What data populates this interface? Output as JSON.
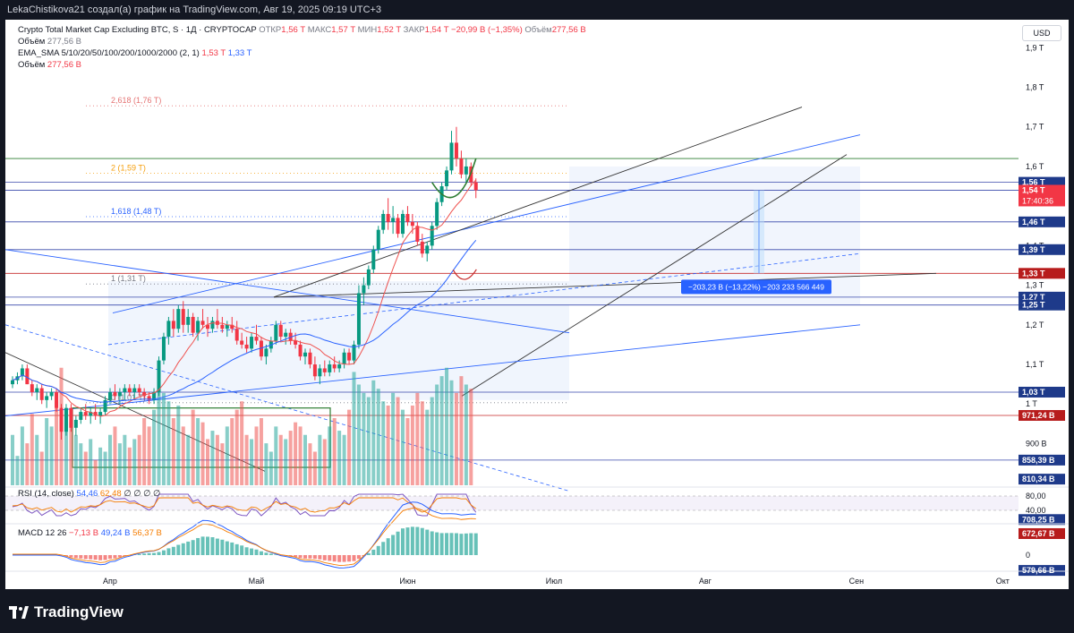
{
  "header": {
    "author_text": "LekaChistikova21 создал(а) график на TradingView.com, Авг 19, 2025 09:19 UTC+3"
  },
  "legend": {
    "symbol": "Crypto Total Market Cap Excluding BTC, S · 1Д · CRYPTOCAP",
    "open_label": "ОТКР",
    "open": "1,56 T",
    "high_label": "МАКС",
    "high": "1,57 T",
    "low_label": "МИН",
    "low": "1,52 T",
    "close_label": "ЗАКР",
    "close": "1,54 T",
    "change": "−20,99 B (−1,35%)",
    "volume_label": "Объём",
    "volume": "277,56 B",
    "vol2_label": "Объём",
    "vol2": "277,56 B",
    "ema_label": "EMA_SMA 5/10/20/50/100/200/1000/2000 (2, 1)",
    "ema1": "1,53 T",
    "ema2": "1,33 T",
    "vol3_label": "Объём",
    "vol3": "277,56 B",
    "rsi_label": "RSI (14, close)",
    "rsi1": "54,46",
    "rsi2": "62,48",
    "rsi_zeros": "∅ ∅ ∅ ∅",
    "macd_label": "MACD 12 26",
    "macd1": "−7,13 B",
    "macd2": "49,24 B",
    "macd3": "56,37 B"
  },
  "currency_button": "USD",
  "price_axis": {
    "ticks": [
      {
        "label": "1,9 T",
        "value": 1.9
      },
      {
        "label": "1,8 T",
        "value": 1.8
      },
      {
        "label": "1,7 T",
        "value": 1.7
      },
      {
        "label": "1,6 T",
        "value": 1.6
      },
      {
        "label": "1,4 T",
        "value": 1.4
      },
      {
        "label": "1,3 T",
        "value": 1.3
      },
      {
        "label": "1,2 T",
        "value": 1.2
      },
      {
        "label": "1,1 T",
        "value": 1.1
      },
      {
        "label": "1 T",
        "value": 1.0
      },
      {
        "label": "900 B",
        "value": 0.9
      }
    ],
    "badges": [
      {
        "label": "1,56 T",
        "value": 1.56,
        "color": "#1e3a8a",
        "sub": ""
      },
      {
        "label": "1,54 T",
        "value": 1.54,
        "color": "#f23645",
        "sub": "17:40:36"
      },
      {
        "label": "1,46 T",
        "value": 1.46,
        "color": "#1e3a8a",
        "sub": ""
      },
      {
        "label": "1,39 T",
        "value": 1.39,
        "color": "#1e3a8a",
        "sub": ""
      },
      {
        "label": "1,33 T",
        "value": 1.33,
        "color": "#b71c1c",
        "sub": ""
      },
      {
        "label": "1,27 T",
        "value": 1.27,
        "color": "#1e3a8a",
        "sub": ""
      },
      {
        "label": "1,25 T",
        "value": 1.25,
        "color": "#1e3a8a",
        "sub": ""
      },
      {
        "label": "1,03 T",
        "value": 1.03,
        "color": "#1e3a8a",
        "sub": ""
      },
      {
        "label": "971,24 B",
        "value": 0.9712,
        "color": "#b71c1c",
        "sub": ""
      },
      {
        "label": "858,39 B",
        "value": 0.8584,
        "color": "#1e3a8a",
        "sub": ""
      },
      {
        "label": "810,34 B",
        "value": 0.8103,
        "color": "#1e3a8a",
        "sub": ""
      },
      {
        "label": "708,25 B",
        "value": 0.7082,
        "color": "#1e3a8a",
        "sub": ""
      },
      {
        "label": "672,67 B",
        "value": 0.6727,
        "color": "#b71c1c",
        "sub": ""
      },
      {
        "label": "579,66 B",
        "value": 0.5797,
        "color": "#1e3a8a",
        "sub": ""
      }
    ]
  },
  "rsi_axis": [
    {
      "label": "80,00",
      "value": 80
    },
    {
      "label": "40,00",
      "value": 40
    }
  ],
  "macd_axis": [
    {
      "label": "0",
      "value": 0
    }
  ],
  "time_axis": [
    {
      "label": "Апр",
      "day": 20
    },
    {
      "label": "Май",
      "day": 50
    },
    {
      "label": "Июн",
      "day": 81
    },
    {
      "label": "Июл",
      "day": 111
    },
    {
      "label": "Авг",
      "day": 142
    },
    {
      "label": "Сен",
      "day": 173
    },
    {
      "label": "Окт",
      "day": 203
    }
  ],
  "fibonacci": [
    {
      "label": "2,618 (1,76 T)",
      "value": 1.76,
      "color": "#e57373"
    },
    {
      "label": "2 (1,59 T)",
      "value": 1.59,
      "color": "#f59e0b"
    },
    {
      "label": "1,618 (1,48 T)",
      "value": 1.48,
      "color": "#2962ff"
    },
    {
      "label": "1 (1,31 T)",
      "value": 1.31,
      "color": "#787b86"
    },
    {
      "label": "0 (1,01 T)",
      "value": 1.01,
      "color": "#787b86"
    }
  ],
  "measurement": {
    "label": "−203,23 B (−13,22%) −203 233 566 449"
  },
  "chart_data": {
    "type": "candlestick",
    "title": "Crypto Total Market Cap Excluding BTC, 1D",
    "ylabel": "USD",
    "ylim": [
      0.84,
      1.93
    ],
    "start_day": 0,
    "end_day": 140,
    "candles": [
      [
        1.05,
        1.07,
        1.04,
        1.06
      ],
      [
        1.06,
        1.08,
        1.05,
        1.07
      ],
      [
        1.07,
        1.1,
        1.06,
        1.09
      ],
      [
        1.09,
        1.1,
        1.05,
        1.05
      ],
      [
        1.05,
        1.06,
        1.02,
        1.03
      ],
      [
        1.03,
        1.05,
        1.01,
        1.04
      ],
      [
        1.04,
        1.05,
        1.0,
        1.01
      ],
      [
        1.01,
        1.03,
        0.99,
        1.02
      ],
      [
        1.02,
        1.04,
        1.01,
        1.03
      ],
      [
        1.03,
        1.04,
        0.98,
        0.99
      ],
      [
        0.99,
        1.0,
        0.91,
        0.93
      ],
      [
        0.93,
        1.0,
        0.92,
        0.99
      ],
      [
        0.99,
        1.0,
        0.93,
        0.94
      ],
      [
        0.94,
        0.97,
        0.92,
        0.96
      ],
      [
        0.96,
        0.99,
        0.95,
        0.98
      ],
      [
        0.98,
        1.0,
        0.96,
        0.97
      ],
      [
        0.97,
        0.99,
        0.95,
        0.98
      ],
      [
        0.98,
        1.0,
        0.96,
        0.97
      ],
      [
        0.97,
        0.99,
        0.95,
        0.98
      ],
      [
        0.98,
        1.02,
        0.97,
        1.01
      ],
      [
        1.01,
        1.04,
        1.0,
        1.03
      ],
      [
        1.03,
        1.05,
        1.01,
        1.02
      ],
      [
        1.02,
        1.04,
        1.0,
        1.03
      ],
      [
        1.03,
        1.05,
        1.01,
        1.04
      ],
      [
        1.04,
        1.05,
        1.02,
        1.03
      ],
      [
        1.03,
        1.05,
        1.01,
        1.04
      ],
      [
        1.04,
        1.05,
        1.02,
        1.03
      ],
      [
        1.03,
        1.04,
        1.01,
        1.02
      ],
      [
        1.02,
        1.03,
        1.0,
        1.01
      ],
      [
        1.01,
        1.04,
        1.0,
        1.03
      ],
      [
        1.03,
        1.12,
        1.02,
        1.11
      ],
      [
        1.11,
        1.18,
        1.1,
        1.17
      ],
      [
        1.17,
        1.22,
        1.15,
        1.21
      ],
      [
        1.21,
        1.24,
        1.17,
        1.19
      ],
      [
        1.19,
        1.25,
        1.18,
        1.24
      ],
      [
        1.24,
        1.26,
        1.18,
        1.2
      ],
      [
        1.2,
        1.24,
        1.18,
        1.22
      ],
      [
        1.22,
        1.23,
        1.17,
        1.18
      ],
      [
        1.18,
        1.22,
        1.16,
        1.21
      ],
      [
        1.21,
        1.24,
        1.19,
        1.2
      ],
      [
        1.2,
        1.22,
        1.17,
        1.19
      ],
      [
        1.19,
        1.22,
        1.18,
        1.21
      ],
      [
        1.21,
        1.24,
        1.19,
        1.2
      ],
      [
        1.2,
        1.22,
        1.18,
        1.19
      ],
      [
        1.19,
        1.21,
        1.17,
        1.2
      ],
      [
        1.2,
        1.22,
        1.18,
        1.19
      ],
      [
        1.19,
        1.21,
        1.15,
        1.16
      ],
      [
        1.16,
        1.18,
        1.14,
        1.15
      ],
      [
        1.15,
        1.17,
        1.13,
        1.14
      ],
      [
        1.14,
        1.18,
        1.13,
        1.17
      ],
      [
        1.17,
        1.2,
        1.15,
        1.16
      ],
      [
        1.16,
        1.17,
        1.11,
        1.12
      ],
      [
        1.12,
        1.15,
        1.1,
        1.14
      ],
      [
        1.14,
        1.17,
        1.13,
        1.16
      ],
      [
        1.16,
        1.21,
        1.15,
        1.2
      ],
      [
        1.2,
        1.21,
        1.16,
        1.17
      ],
      [
        1.17,
        1.19,
        1.15,
        1.18
      ],
      [
        1.18,
        1.19,
        1.15,
        1.16
      ],
      [
        1.16,
        1.18,
        1.14,
        1.15
      ],
      [
        1.15,
        1.16,
        1.11,
        1.12
      ],
      [
        1.12,
        1.14,
        1.1,
        1.13
      ],
      [
        1.13,
        1.14,
        1.09,
        1.1
      ],
      [
        1.1,
        1.12,
        1.06,
        1.07
      ],
      [
        1.07,
        1.1,
        1.05,
        1.09
      ],
      [
        1.09,
        1.11,
        1.07,
        1.08
      ],
      [
        1.08,
        1.11,
        1.07,
        1.1
      ],
      [
        1.1,
        1.12,
        1.08,
        1.09
      ],
      [
        1.09,
        1.11,
        1.08,
        1.1
      ],
      [
        1.1,
        1.14,
        1.09,
        1.13
      ],
      [
        1.13,
        1.14,
        1.1,
        1.11
      ],
      [
        1.11,
        1.16,
        1.1,
        1.15
      ],
      [
        1.15,
        1.3,
        1.14,
        1.28
      ],
      [
        1.28,
        1.32,
        1.25,
        1.3
      ],
      [
        1.3,
        1.35,
        1.29,
        1.34
      ],
      [
        1.34,
        1.4,
        1.33,
        1.39
      ],
      [
        1.39,
        1.45,
        1.38,
        1.44
      ],
      [
        1.44,
        1.49,
        1.43,
        1.48
      ],
      [
        1.48,
        1.52,
        1.44,
        1.46
      ],
      [
        1.46,
        1.5,
        1.43,
        1.47
      ],
      [
        1.47,
        1.48,
        1.42,
        1.43
      ],
      [
        1.43,
        1.49,
        1.42,
        1.48
      ],
      [
        1.48,
        1.5,
        1.45,
        1.46
      ],
      [
        1.46,
        1.48,
        1.43,
        1.45
      ],
      [
        1.45,
        1.46,
        1.4,
        1.41
      ],
      [
        1.41,
        1.43,
        1.37,
        1.38
      ],
      [
        1.38,
        1.41,
        1.36,
        1.4
      ],
      [
        1.4,
        1.46,
        1.39,
        1.45
      ],
      [
        1.45,
        1.52,
        1.44,
        1.51
      ],
      [
        1.51,
        1.56,
        1.5,
        1.55
      ],
      [
        1.55,
        1.6,
        1.54,
        1.59
      ],
      [
        1.59,
        1.69,
        1.58,
        1.66
      ],
      [
        1.66,
        1.7,
        1.6,
        1.62
      ],
      [
        1.62,
        1.64,
        1.57,
        1.58
      ],
      [
        1.58,
        1.62,
        1.56,
        1.6
      ],
      [
        1.6,
        1.61,
        1.55,
        1.56
      ],
      [
        1.56,
        1.57,
        1.52,
        1.54
      ]
    ],
    "volumes": [
      0.7,
      0.65,
      0.72,
      0.68,
      0.75,
      0.7,
      0.66,
      0.74,
      0.72,
      0.78,
      0.86,
      0.76,
      0.73,
      0.7,
      0.68,
      0.66,
      0.69,
      0.64,
      0.67,
      0.66,
      0.7,
      0.72,
      0.68,
      0.7,
      0.67,
      0.69,
      0.7,
      0.74,
      0.72,
      0.76,
      0.82,
      0.8,
      0.78,
      0.74,
      0.77,
      0.72,
      0.7,
      0.76,
      0.74,
      0.73,
      0.69,
      0.71,
      0.7,
      0.68,
      0.72,
      0.74,
      0.76,
      0.78,
      0.7,
      0.69,
      0.72,
      0.74,
      0.68,
      0.66,
      0.72,
      0.7,
      0.69,
      0.71,
      0.73,
      0.72,
      0.7,
      0.68,
      0.66,
      0.7,
      0.69,
      0.72,
      0.74,
      0.71,
      0.7,
      0.76,
      0.85,
      0.82,
      0.8,
      0.79,
      0.83,
      0.81,
      0.78,
      0.77,
      0.8,
      0.79,
      0.76,
      0.74,
      0.77,
      0.8,
      0.78,
      0.76,
      0.79,
      0.82,
      0.84,
      0.86,
      0.83,
      0.8,
      0.84,
      0.82,
      0.81
    ]
  }
}
